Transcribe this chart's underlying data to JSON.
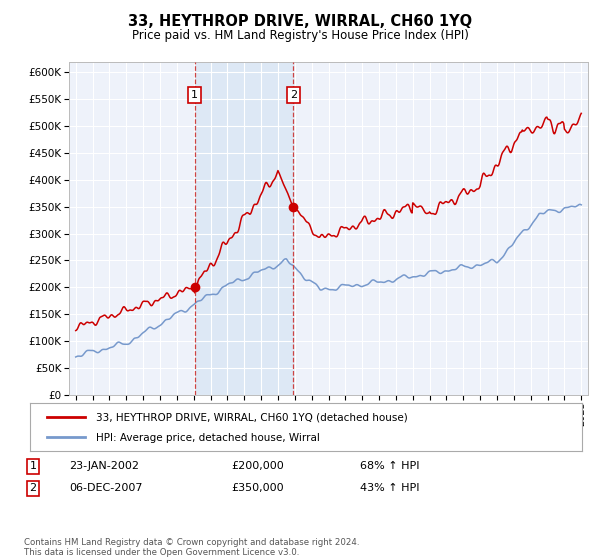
{
  "title": "33, HEYTHROP DRIVE, WIRRAL, CH60 1YQ",
  "subtitle": "Price paid vs. HM Land Registry's House Price Index (HPI)",
  "sale1_date": "23-JAN-2002",
  "sale1_price": 200000,
  "sale1_hpi": "68% ↑ HPI",
  "sale1_label": "1",
  "sale2_date": "06-DEC-2007",
  "sale2_price": 350000,
  "sale2_hpi": "43% ↑ HPI",
  "sale2_label": "2",
  "legend_line1": "33, HEYTHROP DRIVE, WIRRAL, CH60 1YQ (detached house)",
  "legend_line2": "HPI: Average price, detached house, Wirral",
  "footer": "Contains HM Land Registry data © Crown copyright and database right 2024.\nThis data is licensed under the Open Government Licence v3.0.",
  "red_color": "#cc0000",
  "blue_color": "#7799cc",
  "shade_color": "#dde8f5",
  "background_plot": "#eef2fa",
  "background_fig": "#ffffff",
  "grid_color": "#ffffff",
  "sale_marker_color": "#cc0000",
  "vline_color": "#cc4444",
  "box_edge_color": "#cc0000",
  "ylim": [
    0,
    620000
  ],
  "yticks": [
    0,
    50000,
    100000,
    150000,
    200000,
    250000,
    300000,
    350000,
    400000,
    450000,
    500000,
    550000,
    600000
  ],
  "sale1_x": 2002.06,
  "sale2_x": 2007.92,
  "xlim_left": 1994.6,
  "xlim_right": 2025.4
}
